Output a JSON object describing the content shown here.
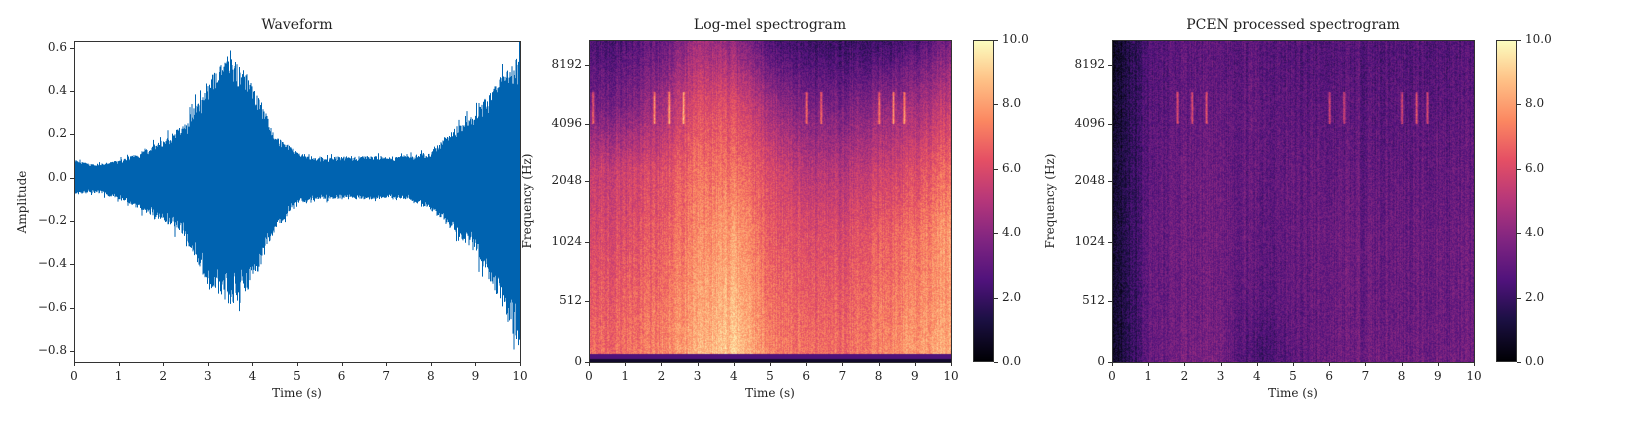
{
  "chart_data": [
    {
      "type": "line",
      "title": "Waveform",
      "xlabel": "Time (s)",
      "ylabel": "Amplitude",
      "xlim": [
        0,
        10
      ],
      "ylim": [
        -0.85,
        0.63
      ],
      "xticks": [
        "0",
        "1",
        "2",
        "3",
        "4",
        "5",
        "6",
        "7",
        "8",
        "9",
        "10"
      ],
      "yticks": [
        "0.6",
        "0.4",
        "0.2",
        "0.0",
        "−0.2",
        "−0.4",
        "−0.6",
        "−0.8"
      ],
      "ytick_values": [
        0.6,
        0.4,
        0.2,
        0.0,
        -0.2,
        -0.4,
        -0.6,
        -0.8
      ],
      "color": "#0063b0",
      "envelope": {
        "t": [
          0,
          0.5,
          1,
          1.5,
          2,
          2.5,
          3,
          3.5,
          4,
          4.5,
          5,
          5.5,
          6,
          6.5,
          7,
          7.5,
          8,
          8.5,
          9,
          9.5,
          10
        ],
        "upper": [
          0.08,
          0.06,
          0.08,
          0.12,
          0.18,
          0.25,
          0.45,
          0.57,
          0.45,
          0.2,
          0.12,
          0.09,
          0.1,
          0.1,
          0.1,
          0.1,
          0.12,
          0.22,
          0.3,
          0.45,
          0.57
        ],
        "lower": [
          -0.08,
          -0.07,
          -0.1,
          -0.15,
          -0.2,
          -0.28,
          -0.5,
          -0.6,
          -0.5,
          -0.25,
          -0.12,
          -0.1,
          -0.1,
          -0.1,
          -0.1,
          -0.1,
          -0.15,
          -0.25,
          -0.35,
          -0.55,
          -0.8
        ]
      }
    },
    {
      "type": "heatmap",
      "title": "Log-mel spectrogram",
      "xlabel": "Time (s)",
      "ylabel": "Frequency (Hz)",
      "xlim": [
        0,
        10
      ],
      "xticks": [
        "0",
        "1",
        "2",
        "3",
        "4",
        "5",
        "6",
        "7",
        "8",
        "9",
        "10"
      ],
      "yticks": [
        "0",
        "512",
        "1024",
        "2048",
        "4096",
        "8192"
      ],
      "colormap": "magma",
      "colorbar": {
        "range": [
          0,
          10
        ],
        "ticks": [
          "0.0",
          "2.0",
          "4.0",
          "6.0",
          "8.0",
          "10.0"
        ]
      },
      "time_s": [
        0,
        1,
        2,
        3,
        4,
        5,
        6,
        7,
        8,
        9,
        10
      ],
      "bands_hz": [
        "0-512",
        "512-1024",
        "1024-2048",
        "2048-4096",
        "4096-8192",
        "8192+"
      ],
      "values": [
        [
          7,
          7,
          7.5,
          8.5,
          9,
          7.5,
          7,
          7,
          7.5,
          8,
          8.5
        ],
        [
          6.5,
          6.5,
          7,
          8,
          8.5,
          7,
          6.5,
          6.5,
          7,
          7.5,
          8
        ],
        [
          6,
          6,
          6.5,
          7.5,
          8,
          6.5,
          6,
          6,
          6.5,
          7,
          8
        ],
        [
          5.5,
          5.5,
          6,
          7,
          7,
          6,
          5,
          5,
          5.5,
          6,
          7
        ],
        [
          3.5,
          3.5,
          4.5,
          6,
          6,
          4.5,
          3.5,
          3.5,
          4,
          4.5,
          5.5
        ],
        [
          2.5,
          2.5,
          3,
          4.5,
          4,
          2.5,
          2,
          2,
          2,
          2.5,
          3.5
        ]
      ],
      "bird_calls_s": [
        0.1,
        1.8,
        2.2,
        2.6,
        6,
        6.4,
        8,
        8.4,
        8.7
      ]
    },
    {
      "type": "heatmap",
      "title": "PCEN processed spectrogram",
      "xlabel": "Time (s)",
      "ylabel": "Frequency (Hz)",
      "xlim": [
        0,
        10
      ],
      "xticks": [
        "0",
        "1",
        "2",
        "3",
        "4",
        "5",
        "6",
        "7",
        "8",
        "9",
        "10"
      ],
      "yticks": [
        "0",
        "512",
        "1024",
        "2048",
        "4096",
        "8192"
      ],
      "colormap": "magma",
      "colorbar": {
        "range": [
          0,
          10
        ],
        "ticks": [
          "0.0",
          "2.0",
          "4.0",
          "6.0",
          "8.0",
          "10.0"
        ]
      },
      "time_s": [
        0,
        1,
        2,
        3,
        4,
        5,
        6,
        7,
        8,
        9,
        10
      ],
      "bands_hz": [
        "0-512",
        "512-1024",
        "1024-2048",
        "2048-4096",
        "4096-8192",
        "8192+"
      ],
      "values": [
        [
          0.3,
          3,
          3.5,
          3.5,
          2.2,
          2.8,
          3.2,
          3.3,
          3.3,
          3.3,
          3.3
        ],
        [
          0.4,
          3,
          3.3,
          3.3,
          2.8,
          3,
          3.2,
          3.2,
          3.2,
          3.2,
          3.2
        ],
        [
          0.5,
          3,
          3.3,
          3.3,
          3,
          3,
          3.2,
          3.2,
          3.2,
          3.2,
          3.2
        ],
        [
          0.5,
          2.8,
          3.2,
          3.2,
          3,
          3,
          3,
          3,
          3,
          3,
          3
        ],
        [
          0.4,
          2.7,
          3,
          3,
          3,
          2.8,
          2.8,
          2.8,
          2.8,
          2.8,
          2.8
        ],
        [
          0.2,
          2.5,
          2.8,
          2.8,
          2.8,
          2.6,
          2.6,
          2.6,
          2.6,
          2.6,
          2.6
        ]
      ],
      "bird_calls_s": [
        1.8,
        2.2,
        2.6,
        6,
        6.4,
        8,
        8.4,
        8.7
      ]
    }
  ]
}
